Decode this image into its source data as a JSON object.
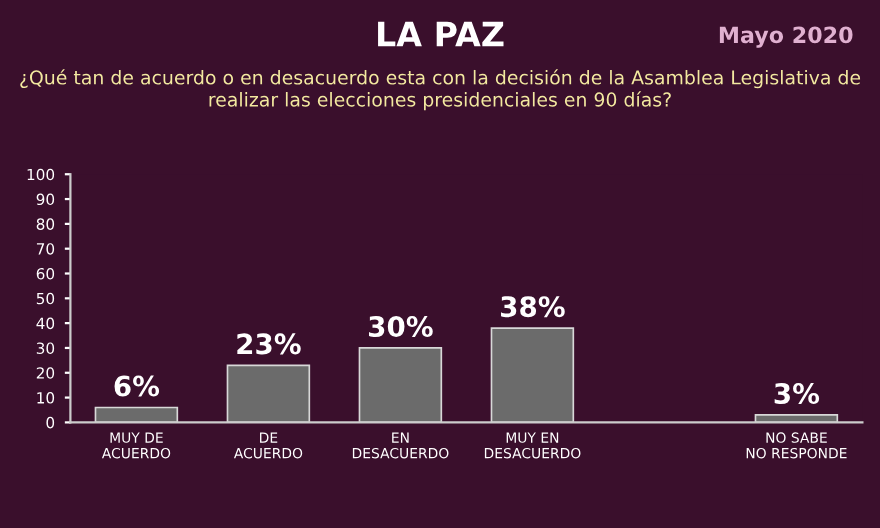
{
  "chart_data": {
    "type": "bar",
    "title": "LA PAZ",
    "subtitle": "¿Qué tan de acuerdo o en desacuerdo esta con la decisión de la Asamblea Legislativa de realizar las elecciones presidenciales en 90 días?",
    "annotations": [
      "Mayo 2020"
    ],
    "categories": [
      "MUY DE\nACUERDO",
      "DE\nACUERDO",
      "EN\nDESACUERDO",
      "MUY EN\nDESACUERDO",
      null,
      "NO SABE\nNO RESPONDE"
    ],
    "values": [
      6,
      23,
      30,
      38,
      null,
      3
    ],
    "value_labels": [
      "6%",
      "23%",
      "30%",
      "38%",
      null,
      "3%"
    ],
    "color": "#6b6b6b",
    "ylim": [
      0,
      100
    ],
    "yticks": [
      0,
      10,
      20,
      30,
      40,
      50,
      60,
      70,
      80,
      90,
      100
    ]
  }
}
